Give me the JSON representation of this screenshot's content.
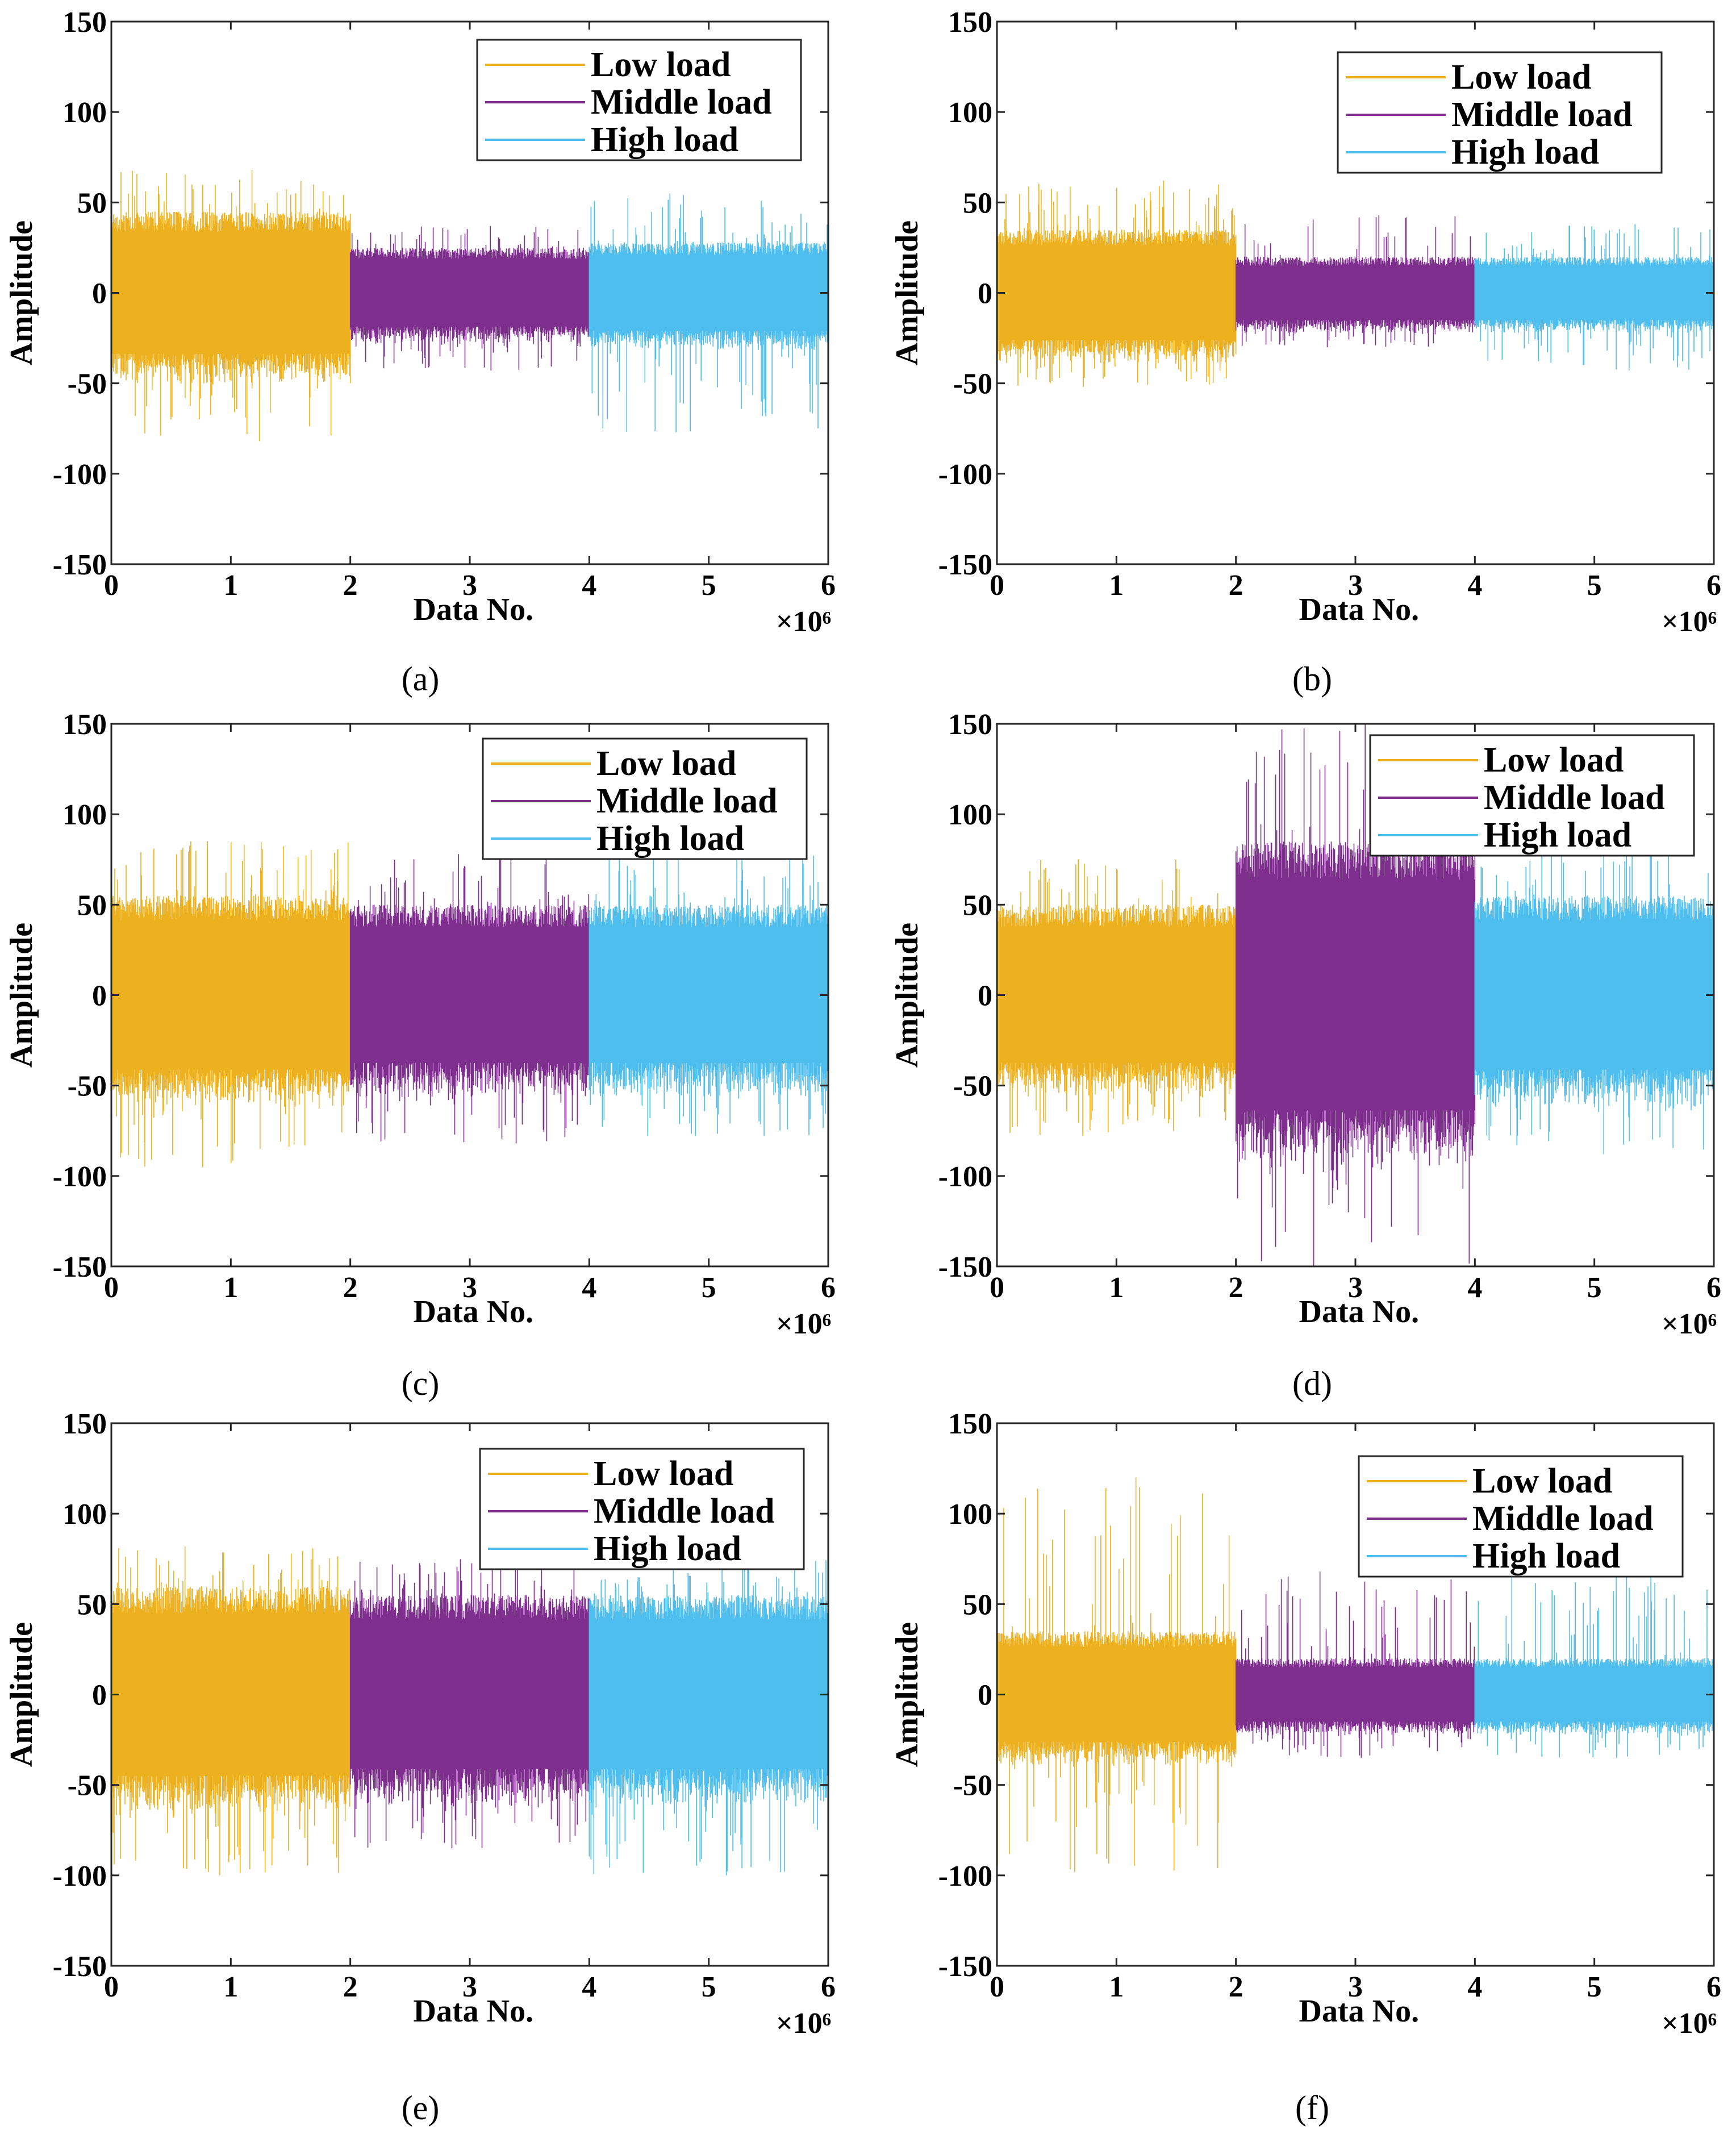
{
  "figure": {
    "type": "line",
    "description_free": true
  },
  "colors": {
    "low": "#EDB120",
    "middle": "#7E2F8E",
    "high": "#4DBEEE"
  },
  "chart_data": [
    {
      "id": "a",
      "type": "line",
      "caption": "(a)",
      "xlabel": "Data No.",
      "ylabel": "Amplitude",
      "x_multiplier": "×10⁶",
      "xlim": [
        0,
        6
      ],
      "ylim": [
        -150,
        150
      ],
      "xticks": [
        "0",
        "1",
        "2",
        "3",
        "4",
        "5",
        "6"
      ],
      "yticks": [
        "150",
        "100",
        "50",
        "0",
        "-50",
        "-100",
        "-150"
      ],
      "legend": [
        "Low load",
        "Middle load",
        "High load"
      ],
      "series": [
        {
          "name": "Low load",
          "x_range": [
            0,
            2
          ],
          "typical_abs": 45,
          "max": 68,
          "min": -82
        },
        {
          "name": "Middle load",
          "x_range": [
            2,
            4
          ],
          "typical_abs": 25,
          "max": 37,
          "min": -43
        },
        {
          "name": "High load",
          "x_range": [
            4,
            6
          ],
          "typical_abs": 28,
          "max": 55,
          "min": -77
        }
      ]
    },
    {
      "id": "b",
      "type": "line",
      "caption": "(b)",
      "xlabel": "Data No.",
      "ylabel": "Amplitude",
      "x_multiplier": "×10⁶",
      "xlim": [
        0,
        6
      ],
      "ylim": [
        -150,
        150
      ],
      "xticks": [
        "0",
        "1",
        "2",
        "3",
        "4",
        "5",
        "6"
      ],
      "yticks": [
        "150",
        "100",
        "50",
        "0",
        "-50",
        "-100",
        "-150"
      ],
      "legend": [
        "Low load",
        "Middle load",
        "High load"
      ],
      "series": [
        {
          "name": "Low load",
          "x_range": [
            0,
            2
          ],
          "typical_abs": 35,
          "max": 62,
          "min": -52
        },
        {
          "name": "Middle load",
          "x_range": [
            2,
            4
          ],
          "typical_abs": 20,
          "max": 43,
          "min": -30
        },
        {
          "name": "High load",
          "x_range": [
            4,
            6
          ],
          "typical_abs": 20,
          "max": 38,
          "min": -43
        }
      ]
    },
    {
      "id": "c",
      "type": "line",
      "caption": "(c)",
      "xlabel": "Data No.",
      "ylabel": "Amplitude",
      "x_multiplier": "×10⁶",
      "xlim": [
        0,
        6
      ],
      "ylim": [
        -150,
        150
      ],
      "xticks": [
        "0",
        "1",
        "2",
        "3",
        "4",
        "5",
        "6"
      ],
      "yticks": [
        "150",
        "100",
        "50",
        "0",
        "-50",
        "-100",
        "-150"
      ],
      "legend": [
        "Low load",
        "Middle load",
        "High load"
      ],
      "series": [
        {
          "name": "Low load",
          "x_range": [
            0,
            2
          ],
          "typical_abs": 55,
          "max": 85,
          "min": -95
        },
        {
          "name": "Middle load",
          "x_range": [
            2,
            4
          ],
          "typical_abs": 50,
          "max": 78,
          "min": -82
        },
        {
          "name": "High load",
          "x_range": [
            4,
            6
          ],
          "typical_abs": 50,
          "max": 82,
          "min": -78
        }
      ]
    },
    {
      "id": "d",
      "type": "line",
      "caption": "(d)",
      "xlabel": "Data No.",
      "ylabel": "Amplitude",
      "x_multiplier": "×10⁶",
      "xlim": [
        0,
        6
      ],
      "ylim": [
        -150,
        150
      ],
      "xticks": [
        "0",
        "1",
        "2",
        "3",
        "4",
        "5",
        "6"
      ],
      "yticks": [
        "150",
        "100",
        "50",
        "0",
        "-50",
        "-100",
        "-150"
      ],
      "legend": [
        "Low load",
        "Middle load",
        "High load"
      ],
      "series": [
        {
          "name": "Low load",
          "x_range": [
            0,
            2
          ],
          "typical_abs": 50,
          "max": 75,
          "min": -78
        },
        {
          "name": "Middle load",
          "x_range": [
            2,
            4
          ],
          "typical_abs": 85,
          "max": 150,
          "min": -150
        },
        {
          "name": "High load",
          "x_range": [
            4,
            6
          ],
          "typical_abs": 55,
          "max": 83,
          "min": -88
        }
      ]
    },
    {
      "id": "e",
      "type": "line",
      "caption": "(e)",
      "xlabel": "Data No.",
      "ylabel": "Amplitude",
      "x_multiplier": "×10⁶",
      "xlim": [
        0,
        6
      ],
      "ylim": [
        -150,
        150
      ],
      "xticks": [
        "0",
        "1",
        "2",
        "3",
        "4",
        "5",
        "6"
      ],
      "yticks": [
        "150",
        "100",
        "50",
        "0",
        "-50",
        "-100",
        "-150"
      ],
      "legend": [
        "Low load",
        "Middle load",
        "High load"
      ],
      "series": [
        {
          "name": "Low load",
          "x_range": [
            0,
            2
          ],
          "typical_abs": 60,
          "max": 82,
          "min": -100
        },
        {
          "name": "Middle load",
          "x_range": [
            2,
            4
          ],
          "typical_abs": 55,
          "max": 75,
          "min": -85
        },
        {
          "name": "High load",
          "x_range": [
            4,
            6
          ],
          "typical_abs": 55,
          "max": 75,
          "min": -100
        }
      ]
    },
    {
      "id": "f",
      "type": "line",
      "caption": "(f)",
      "xlabel": "Data No.",
      "ylabel": "Amplitude",
      "x_multiplier": "×10⁶",
      "xlim": [
        0,
        6
      ],
      "ylim": [
        -150,
        150
      ],
      "xticks": [
        "0",
        "1",
        "2",
        "3",
        "4",
        "5",
        "6"
      ],
      "yticks": [
        "150",
        "100",
        "50",
        "0",
        "-50",
        "-100",
        "-150"
      ],
      "legend": [
        "Low load",
        "Middle load",
        "High load"
      ],
      "series": [
        {
          "name": "Low load",
          "x_range": [
            0,
            2
          ],
          "typical_abs": 35,
          "max": 120,
          "min": -98
        },
        {
          "name": "Middle load",
          "x_range": [
            2,
            4
          ],
          "typical_abs": 20,
          "max": 68,
          "min": -35
        },
        {
          "name": "High load",
          "x_range": [
            4,
            6
          ],
          "typical_abs": 20,
          "max": 68,
          "min": -35
        }
      ]
    }
  ]
}
